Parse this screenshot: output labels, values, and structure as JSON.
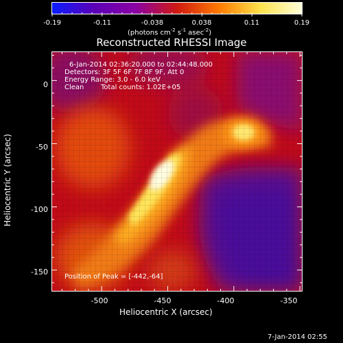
{
  "colorbar": {
    "ticks": [
      "-0.19",
      "-0.11",
      "-0.038",
      "0.038",
      "0.11",
      "0.19"
    ],
    "units_text": "(photons cm",
    "units_sup1": "-2",
    "units_mid": " s",
    "units_sup2": "-1",
    "units_end": " asec",
    "units_sup3": "-2",
    "units_close": ")",
    "colors": [
      "#0a1dff",
      "#5b00b6",
      "#8a00a4",
      "#cf1a12",
      "#ff7a00",
      "#ffe14b",
      "#ffffd8"
    ]
  },
  "title": "Reconstructed RHESSI Image",
  "info": {
    "line1": "6-Jan-2014 02:36:20.000 to 02:44:48.000",
    "line2": "Detectors: 3F 5F 6F 7F 8F 9F, Att 0",
    "line3": "Energy Range: 3.0 - 6.0 keV",
    "line4_a": "Clean",
    "line4_b": "Total counts: 1.02E+05",
    "peak": "Position of Peak = [-442,-64]"
  },
  "axes": {
    "xlabel": "Heliocentric X (arcsec)",
    "ylabel": "Heliocentric Y (arcsec)",
    "xticks": [
      "-500",
      "-450",
      "-400",
      "-350"
    ],
    "yticks": [
      "0",
      "-50",
      "-100",
      "-150"
    ]
  },
  "timestamp": "7-Jan-2014 02:55",
  "chart_data": {
    "type": "heatmap",
    "title": "Reconstructed RHESSI Image",
    "xlabel": "Heliocentric X (arcsec)",
    "ylabel": "Heliocentric Y (arcsec)",
    "xlim": [
      -538,
      -348
    ],
    "ylim": [
      -167,
      23
    ],
    "xticks": [
      -500,
      -450,
      -400,
      -350
    ],
    "yticks": [
      0,
      -50,
      -100,
      -150
    ],
    "colorbar_range": [
      -0.19,
      0.19
    ],
    "colorbar_ticks": [
      -0.19,
      -0.11,
      -0.038,
      0.038,
      0.11,
      0.19
    ],
    "peak_position": [
      -442,
      -64
    ],
    "sources": [
      {
        "kind": "ridge",
        "from": [
          -478,
          -105
        ],
        "to": [
          -438,
          -48
        ],
        "peak_value": 0.19
      },
      {
        "kind": "blob",
        "center": [
          -385,
          -39
        ],
        "peak_value": 0.17
      }
    ]
  }
}
